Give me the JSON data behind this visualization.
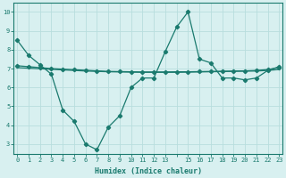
{
  "x": [
    0,
    1,
    2,
    3,
    4,
    5,
    6,
    7,
    8,
    9,
    10,
    11,
    12,
    13,
    14,
    15,
    16,
    17,
    18,
    19,
    20,
    21,
    22,
    23
  ],
  "line1": [
    8.5,
    7.7,
    7.2,
    6.7,
    4.8,
    4.2,
    3.0,
    2.7,
    3.9,
    4.5,
    6.0,
    6.5,
    6.5,
    7.9,
    9.2,
    10.0,
    7.5,
    7.3,
    6.5,
    6.5,
    6.4,
    6.5,
    6.9,
    7.1
  ],
  "line2": [
    7.15,
    7.1,
    7.05,
    7.0,
    6.97,
    6.94,
    6.91,
    6.88,
    6.85,
    6.84,
    6.83,
    6.82,
    6.82,
    6.82,
    6.83,
    6.83,
    6.84,
    6.85,
    6.86,
    6.87,
    6.88,
    6.9,
    6.95,
    7.05
  ],
  "line3": [
    7.05,
    7.02,
    6.99,
    6.96,
    6.93,
    6.9,
    6.87,
    6.85,
    6.83,
    6.82,
    6.81,
    6.8,
    6.8,
    6.8,
    6.8,
    6.81,
    6.82,
    6.83,
    6.84,
    6.85,
    6.86,
    6.87,
    6.9,
    6.95
  ],
  "line_color": "#1a7a6e",
  "bg_color": "#d8f0f0",
  "grid_color": "#b8dede",
  "xlabel": "Humidex (Indice chaleur)",
  "ylim": [
    2.5,
    10.5
  ],
  "xlim": [
    -0.3,
    23.3
  ],
  "yticks": [
    3,
    4,
    5,
    6,
    7,
    8,
    9,
    10
  ],
  "xtick_labels": [
    "0",
    "1",
    "2",
    "3",
    "4",
    "5",
    "6",
    "7",
    "8",
    "9",
    "10",
    "11",
    "12",
    "13",
    "",
    "15",
    "16",
    "17",
    "18",
    "19",
    "20",
    "21",
    "22",
    "23"
  ],
  "marker": "D",
  "marker_size": 2.2,
  "line_width": 0.9,
  "tick_fontsize": 5.0,
  "xlabel_fontsize": 6.0
}
